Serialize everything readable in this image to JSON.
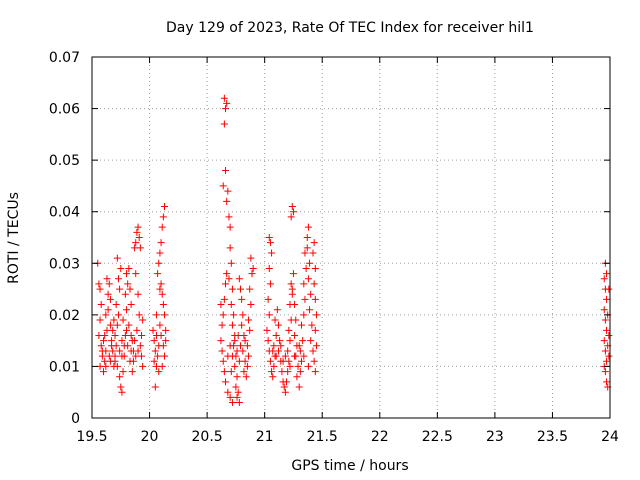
{
  "chart_data": {
    "type": "scatter",
    "title": "Day 129 of 2023, Rate Of TEC Index for receiver hil1",
    "xlabel": "GPS time / hours",
    "ylabel": "ROTI / TECUs",
    "xlim": [
      19.5,
      24
    ],
    "ylim": [
      0,
      0.07
    ],
    "x_ticks": [
      "19.5",
      "20",
      "20.5",
      "21",
      "21.5",
      "22",
      "22.5",
      "23",
      "23.5",
      "24"
    ],
    "y_ticks": [
      "0",
      "0.01",
      "0.02",
      "0.03",
      "0.04",
      "0.05",
      "0.06",
      "0.07"
    ],
    "grid": true,
    "marker": "plus",
    "color": "#ff0000",
    "series": [
      {
        "name": "ROTI",
        "points": [
          [
            19.55,
            0.03
          ],
          [
            19.56,
            0.026
          ],
          [
            19.57,
            0.025
          ],
          [
            19.58,
            0.022
          ],
          [
            19.57,
            0.019
          ],
          [
            19.56,
            0.016
          ],
          [
            19.58,
            0.014
          ],
          [
            19.59,
            0.012
          ],
          [
            19.57,
            0.01
          ],
          [
            19.6,
            0.009
          ],
          [
            19.61,
            0.011
          ],
          [
            19.62,
            0.013
          ],
          [
            19.6,
            0.015
          ],
          [
            19.63,
            0.017
          ],
          [
            19.62,
            0.02
          ],
          [
            19.64,
            0.024
          ],
          [
            19.63,
            0.027
          ],
          [
            19.65,
            0.026
          ],
          [
            19.66,
            0.023
          ],
          [
            19.64,
            0.021
          ],
          [
            19.66,
            0.018
          ],
          [
            19.67,
            0.015
          ],
          [
            19.68,
            0.013
          ],
          [
            19.66,
            0.011
          ],
          [
            19.69,
            0.01
          ],
          [
            19.7,
            0.012
          ],
          [
            19.71,
            0.014
          ],
          [
            19.7,
            0.016
          ],
          [
            19.72,
            0.018
          ],
          [
            19.73,
            0.02
          ],
          [
            19.71,
            0.022
          ],
          [
            19.74,
            0.025
          ],
          [
            19.73,
            0.027
          ],
          [
            19.75,
            0.029
          ],
          [
            19.72,
            0.031
          ],
          [
            19.74,
            0.008
          ],
          [
            19.75,
            0.006
          ],
          [
            19.76,
            0.005
          ],
          [
            19.77,
            0.009
          ],
          [
            19.76,
            0.012
          ],
          [
            19.78,
            0.014
          ],
          [
            19.79,
            0.016
          ],
          [
            19.77,
            0.019
          ],
          [
            19.8,
            0.021
          ],
          [
            19.79,
            0.024
          ],
          [
            19.81,
            0.026
          ],
          [
            19.8,
            0.028
          ],
          [
            19.82,
            0.029
          ],
          [
            19.83,
            0.025
          ],
          [
            19.84,
            0.022
          ],
          [
            19.82,
            0.018
          ],
          [
            19.85,
            0.015
          ],
          [
            19.84,
            0.013
          ],
          [
            19.86,
            0.011
          ],
          [
            19.85,
            0.009
          ],
          [
            19.87,
            0.033
          ],
          [
            19.88,
            0.034
          ],
          [
            19.89,
            0.036
          ],
          [
            19.9,
            0.037
          ],
          [
            19.91,
            0.035
          ],
          [
            19.92,
            0.033
          ],
          [
            19.88,
            0.028
          ],
          [
            19.9,
            0.024
          ],
          [
            19.91,
            0.02
          ],
          [
            19.89,
            0.017
          ],
          [
            19.92,
            0.014
          ],
          [
            19.93,
            0.012
          ],
          [
            19.94,
            0.01
          ],
          [
            19.93,
            0.016
          ],
          [
            19.94,
            0.019
          ],
          [
            19.68,
            0.017
          ],
          [
            19.69,
            0.019
          ],
          [
            19.61,
            0.016
          ],
          [
            19.59,
            0.013
          ],
          [
            19.65,
            0.012
          ],
          [
            19.67,
            0.014
          ],
          [
            19.7,
            0.011
          ],
          [
            19.74,
            0.013
          ],
          [
            19.78,
            0.012
          ],
          [
            19.81,
            0.014
          ],
          [
            19.83,
            0.011
          ],
          [
            19.86,
            0.013
          ],
          [
            19.88,
            0.012
          ],
          [
            19.62,
            0.01
          ],
          [
            19.72,
            0.01
          ],
          [
            19.76,
            0.015
          ],
          [
            19.8,
            0.017
          ],
          [
            19.84,
            0.016
          ],
          [
            19.87,
            0.015
          ],
          [
            19.9,
            0.013
          ],
          [
            20.03,
            0.017
          ],
          [
            20.04,
            0.015
          ],
          [
            20.05,
            0.013
          ],
          [
            20.04,
            0.011
          ],
          [
            20.06,
            0.01
          ],
          [
            20.05,
            0.006
          ],
          [
            20.07,
            0.012
          ],
          [
            20.08,
            0.014
          ],
          [
            20.06,
            0.016
          ],
          [
            20.09,
            0.018
          ],
          [
            20.08,
            0.03
          ],
          [
            20.09,
            0.032
          ],
          [
            20.1,
            0.034
          ],
          [
            20.11,
            0.037
          ],
          [
            20.12,
            0.039
          ],
          [
            20.13,
            0.041
          ],
          [
            20.1,
            0.026
          ],
          [
            20.11,
            0.024
          ],
          [
            20.12,
            0.022
          ],
          [
            20.13,
            0.02
          ],
          [
            20.1,
            0.016
          ],
          [
            20.12,
            0.014
          ],
          [
            20.13,
            0.012
          ],
          [
            20.11,
            0.01
          ],
          [
            20.14,
            0.015
          ],
          [
            20.14,
            0.017
          ],
          [
            20.07,
            0.028
          ],
          [
            20.09,
            0.025
          ],
          [
            20.06,
            0.02
          ],
          [
            20.08,
            0.009
          ],
          [
            20.65,
            0.062
          ],
          [
            20.66,
            0.06
          ],
          [
            20.67,
            0.061
          ],
          [
            20.65,
            0.057
          ],
          [
            20.64,
            0.045
          ],
          [
            20.66,
            0.048
          ],
          [
            20.68,
            0.044
          ],
          [
            20.67,
            0.042
          ],
          [
            20.69,
            0.039
          ],
          [
            20.7,
            0.037
          ],
          [
            20.7,
            0.033
          ],
          [
            20.71,
            0.03
          ],
          [
            20.69,
            0.027
          ],
          [
            20.72,
            0.025
          ],
          [
            20.71,
            0.022
          ],
          [
            20.73,
            0.02
          ],
          [
            20.72,
            0.018
          ],
          [
            20.74,
            0.016
          ],
          [
            20.73,
            0.014
          ],
          [
            20.75,
            0.012
          ],
          [
            20.74,
            0.01
          ],
          [
            20.76,
            0.008
          ],
          [
            20.75,
            0.006
          ],
          [
            20.77,
            0.005
          ],
          [
            20.76,
            0.004
          ],
          [
            20.78,
            0.003
          ],
          [
            20.72,
            0.003
          ],
          [
            20.7,
            0.004
          ],
          [
            20.68,
            0.005
          ],
          [
            20.66,
            0.007
          ],
          [
            20.65,
            0.009
          ],
          [
            20.64,
            0.011
          ],
          [
            20.63,
            0.013
          ],
          [
            20.62,
            0.015
          ],
          [
            20.63,
            0.018
          ],
          [
            20.64,
            0.02
          ],
          [
            20.65,
            0.023
          ],
          [
            20.66,
            0.026
          ],
          [
            20.67,
            0.028
          ],
          [
            20.62,
            0.022
          ],
          [
            20.78,
            0.027
          ],
          [
            20.79,
            0.025
          ],
          [
            20.8,
            0.023
          ],
          [
            20.81,
            0.02
          ],
          [
            20.8,
            0.018
          ],
          [
            20.82,
            0.016
          ],
          [
            20.81,
            0.013
          ],
          [
            20.83,
            0.011
          ],
          [
            20.82,
            0.009
          ],
          [
            20.84,
            0.008
          ],
          [
            20.85,
            0.01
          ],
          [
            20.86,
            0.012
          ],
          [
            20.85,
            0.014
          ],
          [
            20.87,
            0.017
          ],
          [
            20.86,
            0.019
          ],
          [
            20.88,
            0.022
          ],
          [
            20.87,
            0.025
          ],
          [
            20.89,
            0.028
          ],
          [
            20.88,
            0.031
          ],
          [
            20.9,
            0.029
          ],
          [
            20.7,
            0.014
          ],
          [
            20.72,
            0.012
          ],
          [
            20.74,
            0.015
          ],
          [
            20.76,
            0.013
          ],
          [
            20.78,
            0.011
          ],
          [
            20.68,
            0.012
          ],
          [
            20.71,
            0.009
          ],
          [
            20.77,
            0.016
          ],
          [
            20.79,
            0.014
          ],
          [
            20.83,
            0.015
          ],
          [
            21.04,
            0.035
          ],
          [
            21.05,
            0.034
          ],
          [
            21.06,
            0.032
          ],
          [
            21.04,
            0.029
          ],
          [
            21.05,
            0.026
          ],
          [
            21.03,
            0.023
          ],
          [
            21.04,
            0.02
          ],
          [
            21.02,
            0.017
          ],
          [
            21.03,
            0.015
          ],
          [
            21.04,
            0.013
          ],
          [
            21.05,
            0.011
          ],
          [
            21.06,
            0.009
          ],
          [
            21.07,
            0.008
          ],
          [
            21.08,
            0.01
          ],
          [
            21.09,
            0.012
          ],
          [
            21.08,
            0.014
          ],
          [
            21.1,
            0.016
          ],
          [
            21.09,
            0.019
          ],
          [
            21.11,
            0.021
          ],
          [
            21.12,
            0.018
          ],
          [
            21.13,
            0.015
          ],
          [
            21.12,
            0.013
          ],
          [
            21.14,
            0.011
          ],
          [
            21.15,
            0.009
          ],
          [
            21.16,
            0.007
          ],
          [
            21.17,
            0.006
          ],
          [
            21.18,
            0.005
          ],
          [
            21.19,
            0.007
          ],
          [
            21.2,
            0.009
          ],
          [
            21.21,
            0.011
          ],
          [
            21.2,
            0.013
          ],
          [
            21.22,
            0.015
          ],
          [
            21.21,
            0.017
          ],
          [
            21.23,
            0.019
          ],
          [
            21.22,
            0.022
          ],
          [
            21.24,
            0.024
          ],
          [
            21.23,
            0.026
          ],
          [
            21.25,
            0.028
          ],
          [
            21.24,
            0.025
          ],
          [
            21.26,
            0.022
          ],
          [
            21.25,
            0.04
          ],
          [
            21.24,
            0.041
          ],
          [
            21.23,
            0.039
          ],
          [
            21.27,
            0.019
          ],
          [
            21.26,
            0.016
          ],
          [
            21.28,
            0.014
          ],
          [
            21.27,
            0.012
          ],
          [
            21.29,
            0.01
          ],
          [
            21.28,
            0.008
          ],
          [
            21.3,
            0.006
          ],
          [
            21.31,
            0.009
          ],
          [
            21.32,
            0.011
          ],
          [
            21.31,
            0.013
          ],
          [
            21.33,
            0.015
          ],
          [
            21.32,
            0.018
          ],
          [
            21.34,
            0.02
          ],
          [
            21.35,
            0.023
          ],
          [
            21.34,
            0.026
          ],
          [
            21.36,
            0.029
          ],
          [
            21.35,
            0.032
          ],
          [
            21.37,
            0.035
          ],
          [
            21.38,
            0.037
          ],
          [
            21.37,
            0.033
          ],
          [
            21.39,
            0.03
          ],
          [
            21.38,
            0.027
          ],
          [
            21.4,
            0.024
          ],
          [
            21.39,
            0.021
          ],
          [
            21.41,
            0.018
          ],
          [
            21.4,
            0.015
          ],
          [
            21.42,
            0.013
          ],
          [
            21.43,
            0.034
          ],
          [
            21.42,
            0.032
          ],
          [
            21.44,
            0.029
          ],
          [
            21.43,
            0.026
          ],
          [
            21.44,
            0.023
          ],
          [
            21.45,
            0.02
          ],
          [
            21.44,
            0.017
          ],
          [
            21.45,
            0.014
          ],
          [
            21.43,
            0.011
          ],
          [
            21.44,
            0.009
          ],
          [
            21.1,
            0.012
          ],
          [
            21.14,
            0.014
          ],
          [
            21.18,
            0.012
          ],
          [
            21.22,
            0.01
          ],
          [
            21.26,
            0.012
          ],
          [
            21.3,
            0.014
          ],
          [
            21.34,
            0.012
          ],
          [
            21.38,
            0.01
          ],
          [
            21.07,
            0.013
          ],
          [
            21.16,
            0.011
          ],
          [
            23.96,
            0.03
          ],
          [
            23.97,
            0.028
          ],
          [
            23.95,
            0.027
          ],
          [
            23.96,
            0.025
          ],
          [
            23.97,
            0.023
          ],
          [
            23.95,
            0.021
          ],
          [
            23.96,
            0.019
          ],
          [
            23.97,
            0.017
          ],
          [
            23.95,
            0.015
          ],
          [
            23.96,
            0.013
          ],
          [
            23.97,
            0.011
          ],
          [
            23.95,
            0.01
          ],
          [
            23.96,
            0.009
          ],
          [
            23.97,
            0.007
          ],
          [
            23.98,
            0.006
          ],
          [
            23.98,
            0.02
          ],
          [
            23.98,
            0.014
          ],
          [
            23.99,
            0.016
          ],
          [
            23.99,
            0.012
          ],
          [
            23.99,
            0.025
          ]
        ]
      }
    ]
  }
}
